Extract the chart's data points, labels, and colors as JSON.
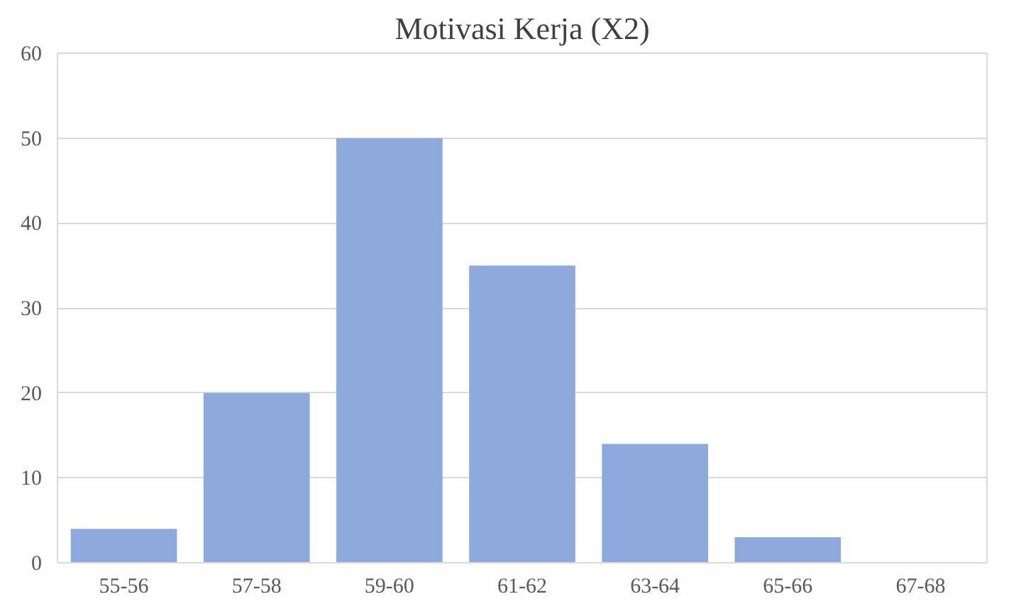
{
  "chart_data": {
    "type": "bar",
    "title": "Motivasi Kerja (X2)",
    "categories": [
      "55-56",
      "57-58",
      "59-60",
      "61-62",
      "63-64",
      "65-66",
      "67-68"
    ],
    "values": [
      4,
      20,
      50,
      35,
      14,
      3,
      0
    ],
    "color": "#8eaadc",
    "ylim": [
      0,
      60
    ],
    "yticks": [
      0,
      10,
      20,
      30,
      40,
      50,
      60
    ],
    "grid": "y"
  }
}
